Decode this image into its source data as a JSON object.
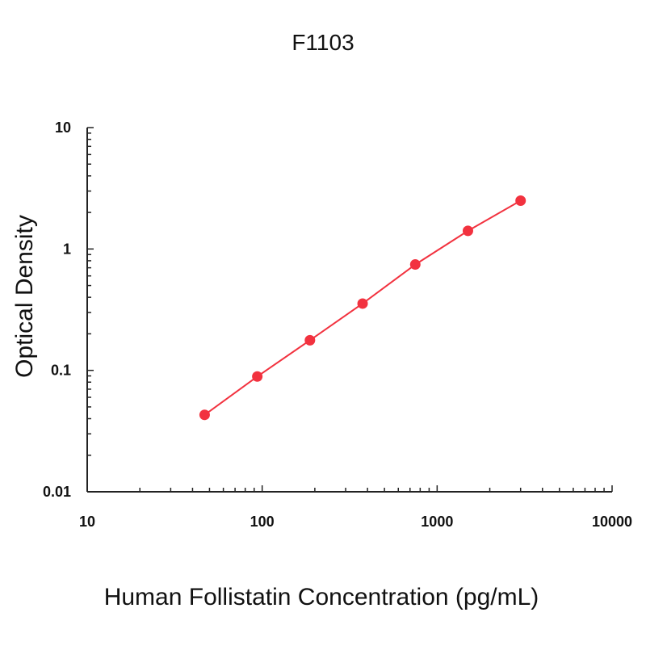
{
  "chart_data": {
    "type": "scatter",
    "title": "F1103",
    "xlabel": "Human Follistatin Concentration (pg/mL)",
    "ylabel": "Optical Density",
    "xscale": "log",
    "yscale": "log",
    "xlim": [
      10,
      10000
    ],
    "ylim": [
      0.01,
      10
    ],
    "x_ticks": [
      10,
      100,
      1000,
      10000
    ],
    "x_tick_labels": [
      "10",
      "100",
      "1000",
      "10000"
    ],
    "y_ticks": [
      0.01,
      0.1,
      1,
      10
    ],
    "y_tick_labels": [
      "0.01",
      "0.1",
      "1",
      "10"
    ],
    "grid": false,
    "series": [
      {
        "x": [
          46.9,
          93.8,
          187.5,
          375,
          750,
          1500,
          3000
        ],
        "y": [
          0.043,
          0.089,
          0.177,
          0.355,
          0.745,
          1.41,
          2.5
        ],
        "color": "#f2323f",
        "fit_line": true
      }
    ]
  }
}
